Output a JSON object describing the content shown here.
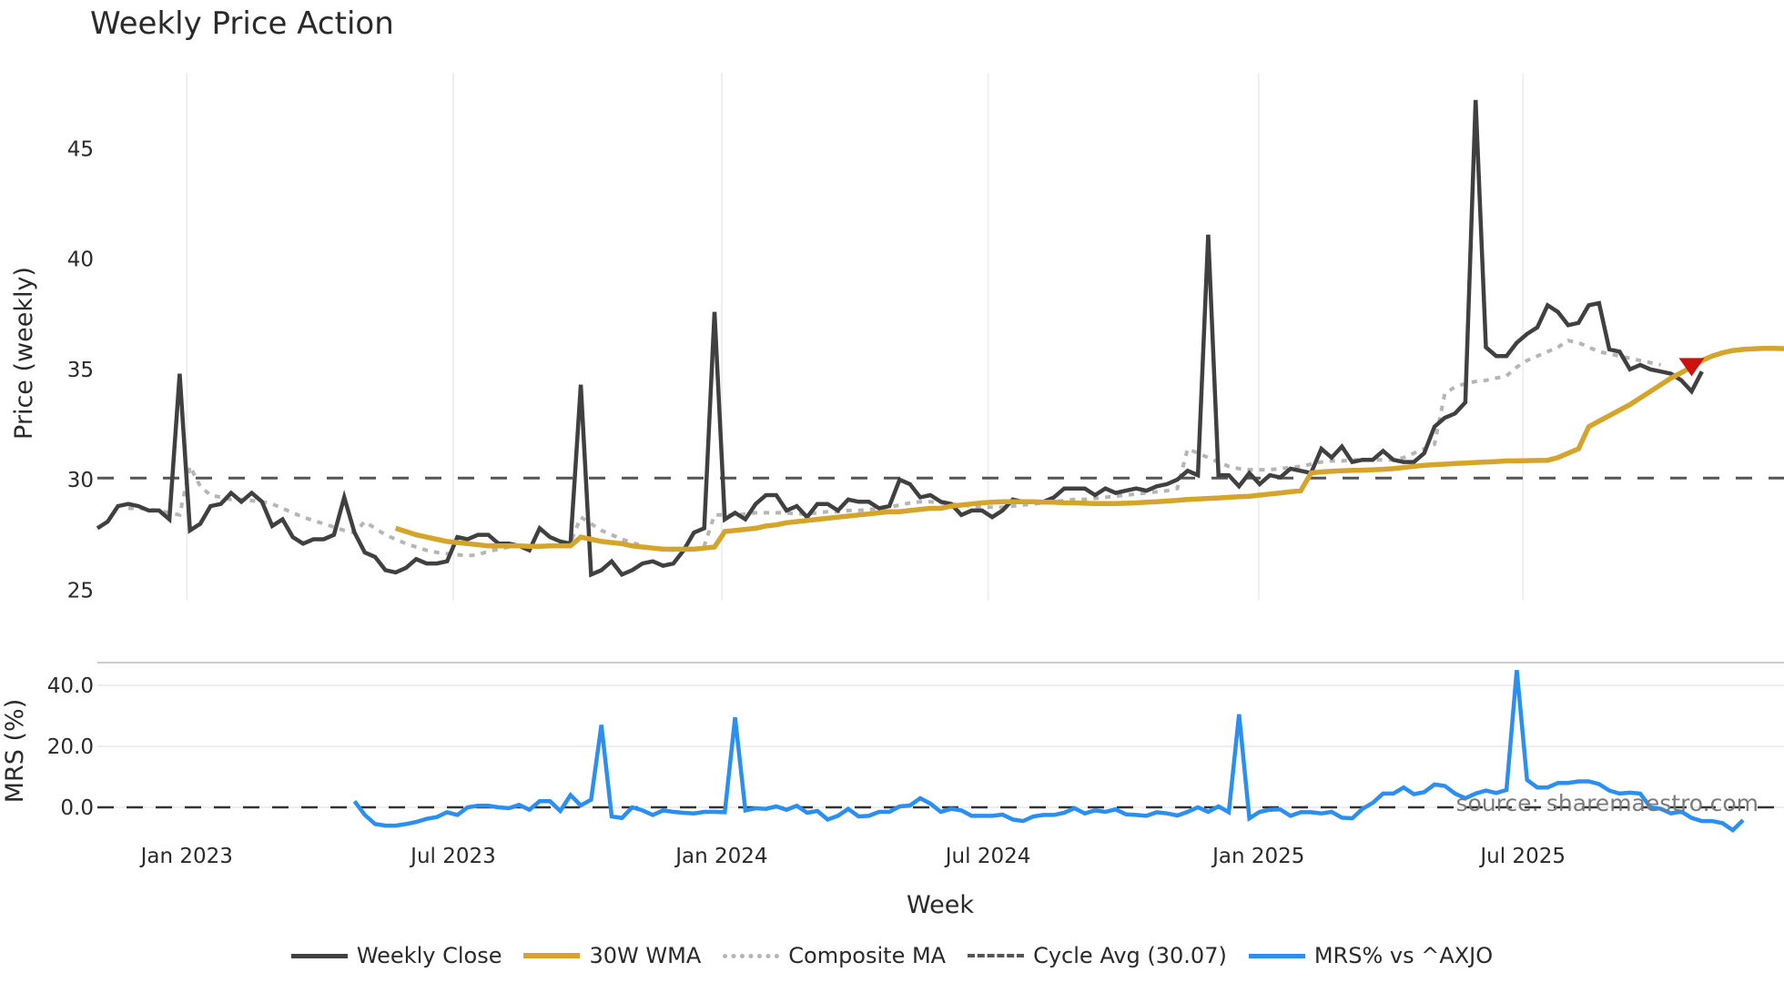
{
  "title": "Weekly Price Action",
  "source": "source: sharemaestro.com",
  "legend": [
    {
      "label": "Weekly Close",
      "color": "#404040",
      "style": "solid"
    },
    {
      "label": "30W WMA",
      "color": "#d4a52a",
      "style": "solid"
    },
    {
      "label": "Composite MA",
      "color": "#b5b5b5",
      "style": "dotted"
    },
    {
      "label": "Cycle Avg (30.07)",
      "color": "#555555",
      "style": "dashed"
    },
    {
      "label": "MRS% vs ^AXJO",
      "color": "#2a8ff0",
      "style": "solid"
    }
  ],
  "chart_data": [
    {
      "type": "line",
      "title": "Weekly Price Action",
      "xlabel": "",
      "ylabel": "Price (weekly)",
      "ylim": [
        24.5,
        48.5
      ],
      "yticks": [
        25,
        30,
        35,
        40,
        45
      ],
      "xticks": [
        "Jan 2023",
        "Jul 2023",
        "Jan 2024",
        "Jul 2024",
        "Jan 2025",
        "Jul 2025"
      ],
      "x_range_weeks": [
        0,
        156
      ],
      "grid": "vertical",
      "cycle_avg": 30.07,
      "signal_marker": {
        "type": "down-triangle",
        "color": "#cc1111",
        "week": 155,
        "value": 35.1
      },
      "series": [
        {
          "name": "Weekly Close",
          "color": "#404040",
          "start_week": 0,
          "values": [
            27.8,
            28.1,
            28.8,
            28.9,
            28.8,
            28.6,
            28.6,
            28.2,
            34.8,
            27.7,
            28.0,
            28.8,
            28.9,
            29.4,
            29.0,
            29.4,
            29.0,
            27.9,
            28.2,
            27.4,
            27.1,
            27.3,
            27.3,
            27.5,
            29.2,
            27.6,
            26.7,
            26.5,
            25.9,
            25.8,
            26.0,
            26.4,
            26.2,
            26.2,
            26.3,
            27.4,
            27.3,
            27.5,
            27.5,
            27.1,
            27.1,
            27.0,
            26.8,
            27.8,
            27.4,
            27.2,
            27.1,
            34.3,
            25.7,
            25.9,
            26.3,
            25.7,
            25.9,
            26.2,
            26.3,
            26.1,
            26.2,
            26.8,
            27.6,
            27.8,
            37.6,
            28.2,
            28.5,
            28.2,
            28.9,
            29.3,
            29.3,
            28.6,
            28.8,
            28.3,
            28.9,
            28.9,
            28.6,
            29.1,
            29.0,
            29.0,
            28.7,
            28.8,
            30.0,
            29.8,
            29.2,
            29.3,
            29.0,
            28.9,
            28.4,
            28.6,
            28.6,
            28.3,
            28.6,
            29.1,
            29.0,
            29.0,
            29.0,
            29.2,
            29.6,
            29.6,
            29.6,
            29.3,
            29.6,
            29.4,
            29.5,
            29.6,
            29.5,
            29.7,
            29.8,
            30.0,
            30.4,
            30.2,
            41.1,
            30.2,
            30.2,
            29.7,
            30.3,
            29.8,
            30.2,
            30.1,
            30.5,
            30.4,
            30.3,
            31.4,
            31.0,
            31.5,
            30.8,
            30.9,
            30.9,
            31.3,
            30.9,
            30.8,
            30.8,
            31.2,
            32.4,
            32.8,
            33.0,
            33.5,
            47.2,
            36.0,
            35.6,
            35.6,
            36.2,
            36.6,
            36.9,
            37.9,
            37.6,
            37.0,
            37.1,
            37.9,
            38.0,
            35.9,
            35.8,
            35.0,
            35.2,
            35.0,
            34.9,
            34.8,
            34.5,
            34.0,
            34.9
          ]
        },
        {
          "name": "30W WMA",
          "color": "#d4a52a",
          "start_week": 29,
          "values": [
            27.8,
            27.65,
            27.5,
            27.4,
            27.3,
            27.2,
            27.15,
            27.1,
            27.05,
            27.0,
            27.0,
            27.0,
            27.0,
            26.98,
            26.98,
            27.0,
            27.0,
            27.0,
            27.4,
            27.3,
            27.2,
            27.15,
            27.1,
            27.0,
            26.95,
            26.9,
            26.85,
            26.85,
            26.85,
            26.85,
            26.9,
            26.95,
            27.65,
            27.7,
            27.75,
            27.8,
            27.9,
            27.95,
            28.05,
            28.1,
            28.15,
            28.2,
            28.25,
            28.3,
            28.35,
            28.4,
            28.45,
            28.5,
            28.55,
            28.55,
            28.6,
            28.65,
            28.7,
            28.7,
            28.8,
            28.85,
            28.9,
            28.95,
            28.98,
            29.0,
            29.0,
            29.0,
            29.0,
            28.98,
            28.98,
            28.95,
            28.95,
            28.93,
            28.92,
            28.92,
            28.92,
            28.93,
            28.95,
            28.98,
            29.0,
            29.03,
            29.06,
            29.1,
            29.12,
            29.15,
            29.17,
            29.2,
            29.23,
            29.25,
            29.3,
            29.35,
            29.4,
            29.45,
            29.5,
            30.3,
            30.35,
            30.38,
            30.4,
            30.42,
            30.43,
            30.45,
            30.47,
            30.5,
            30.55,
            30.6,
            30.65,
            30.68,
            30.7,
            30.73,
            30.75,
            30.78,
            30.8,
            30.82,
            30.85,
            30.85,
            30.86,
            30.87,
            30.88,
            31.0,
            31.2,
            31.4,
            32.4,
            32.65,
            32.9,
            33.15,
            33.4,
            33.7,
            34.0,
            34.3,
            34.6,
            34.85,
            35.1,
            35.4,
            35.6,
            35.75,
            35.85,
            35.9,
            35.93,
            35.95,
            35.95,
            35.94,
            35.92,
            35.9,
            35.85,
            35.8,
            35.8
          ]
        },
        {
          "name": "Composite MA",
          "color": "#b5b5b5",
          "start_week": 3,
          "values": [
            28.7,
            28.7,
            28.65,
            28.6,
            28.5,
            28.4,
            30.6,
            29.7,
            29.3,
            29.2,
            29.1,
            29.1,
            29.05,
            29.0,
            28.9,
            28.7,
            28.5,
            28.3,
            28.15,
            28.0,
            27.85,
            27.7,
            27.6,
            28.1,
            27.8,
            27.5,
            27.3,
            27.1,
            26.95,
            26.8,
            26.7,
            26.65,
            26.6,
            26.55,
            26.6,
            26.75,
            26.85,
            26.95,
            27.0,
            27.0,
            27.0,
            27.0,
            27.05,
            27.15,
            28.3,
            28.0,
            27.7,
            27.5,
            27.3,
            27.15,
            27.0,
            26.9,
            26.85,
            26.8,
            26.8,
            26.85,
            27.0,
            28.4,
            28.4,
            28.4,
            28.45,
            28.5,
            28.5,
            28.5,
            28.5,
            28.45,
            28.45,
            28.5,
            28.55,
            28.55,
            28.6,
            28.6,
            28.65,
            28.7,
            28.75,
            28.85,
            28.95,
            29.0,
            29.0,
            28.95,
            28.9,
            28.85,
            28.8,
            28.75,
            28.75,
            28.75,
            28.8,
            28.85,
            28.9,
            28.95,
            29.0,
            29.05,
            29.1,
            29.1,
            29.15,
            29.2,
            29.25,
            29.3,
            29.35,
            29.4,
            29.45,
            29.5,
            29.6,
            31.4,
            31.2,
            31.0,
            30.8,
            30.6,
            30.5,
            30.45,
            30.45,
            30.45,
            30.5,
            30.55,
            30.6,
            30.7,
            30.8,
            30.85,
            30.85,
            30.9,
            30.9,
            30.9,
            30.9,
            30.9,
            31.0,
            31.2,
            31.4,
            31.6,
            33.9,
            34.2,
            34.35,
            34.45,
            34.5,
            34.6,
            34.7,
            35.1,
            35.4,
            35.6,
            35.8,
            36.0,
            36.3,
            36.2,
            36.0,
            35.8,
            35.7,
            35.6,
            35.5,
            35.4,
            35.3,
            35.2
          ]
        },
        {
          "name": "MRS% vs ^AXJO",
          "color": "#2a8ff0",
          "panel": "lower",
          "start_week": 25,
          "values": [
            2.0,
            -2.5,
            -5.5,
            -6.0,
            -6.0,
            -5.5,
            -4.8,
            -3.8,
            -3.2,
            -1.6,
            -2.5,
            0.0,
            0.5,
            0.5,
            0.0,
            -0.3,
            0.8,
            -0.8,
            2.0,
            2.0,
            -1.2,
            4.0,
            0.6,
            2.5,
            27.0,
            -3.0,
            -3.5,
            0.0,
            -1.0,
            -2.5,
            -1.0,
            -1.5,
            -1.8,
            -2.0,
            -1.5,
            -1.5,
            -1.6,
            29.5,
            -1.0,
            -0.3,
            -0.5,
            0.3,
            -0.8,
            0.5,
            -1.8,
            -1.2,
            -4.0,
            -2.8,
            -0.5,
            -3.0,
            -2.8,
            -1.5,
            -1.5,
            0.3,
            0.6,
            3.0,
            1.2,
            -1.5,
            -0.5,
            -1.0,
            -2.8,
            -2.8,
            -2.8,
            -2.4,
            -4.0,
            -4.5,
            -3.0,
            -2.5,
            -2.5,
            -1.8,
            -0.3,
            -2.0,
            -1.0,
            -1.5,
            -0.7,
            -2.3,
            -2.5,
            -2.8,
            -1.6,
            -2.0,
            -2.7,
            -1.5,
            0.0,
            -1.5,
            0.3,
            -1.6,
            30.5,
            -3.6,
            -1.5,
            -0.8,
            -0.7,
            -2.8,
            -1.6,
            -1.6,
            -2.0,
            -1.5,
            -3.4,
            -3.6,
            -0.5,
            1.5,
            4.5,
            4.5,
            6.5,
            4.3,
            5.0,
            7.5,
            7.0,
            4.5,
            3.0,
            4.5,
            5.5,
            4.7,
            5.7,
            45.0,
            9.0,
            6.5,
            6.5,
            8.0,
            8.0,
            8.5,
            8.5,
            7.6,
            5.5,
            4.5,
            4.8,
            4.5,
            0.0,
            -0.5,
            -2.0,
            -1.4,
            -3.5,
            -4.5,
            -4.5,
            -5.2,
            -7.5,
            -4.2
          ]
        }
      ]
    },
    {
      "type": "line",
      "title": "",
      "xlabel": "Week",
      "ylabel": "MRS (%)",
      "ylim": [
        -10,
        47
      ],
      "yticks": [
        "0.0",
        "20.0",
        "40.0"
      ],
      "xticks": [
        "Jan 2023",
        "Jul 2023",
        "Jan 2024",
        "Jul 2024",
        "Jan 2025",
        "Jul 2025"
      ],
      "reference_line": 0.0
    }
  ],
  "axes": {
    "price_ylabel": "Price (weekly)",
    "mrs_ylabel": "MRS (%)",
    "xlabel": "Week",
    "price_ticks": [
      "25",
      "30",
      "35",
      "40",
      "45"
    ],
    "mrs_ticks": [
      "0.0",
      "20.0",
      "40.0"
    ],
    "x_ticks": [
      "Jan 2023",
      "Jul 2023",
      "Jan 2024",
      "Jul 2024",
      "Jan 2025",
      "Jul 2025"
    ]
  }
}
